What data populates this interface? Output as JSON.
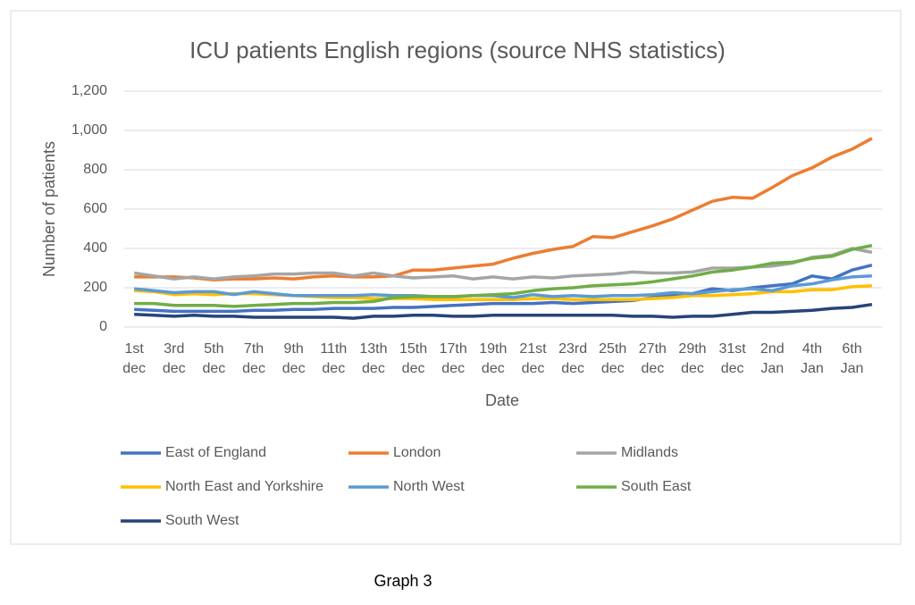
{
  "chart_data": {
    "type": "line",
    "title": "ICU patients English regions (source NHS statistics)",
    "y_label": "Number of  patients",
    "x_label": "Date",
    "caption": "Graph 3",
    "categories": [
      "1st dec",
      null,
      "3rd dec",
      null,
      "5th dec",
      null,
      "7th dec",
      null,
      "9th dec",
      null,
      "11th dec",
      null,
      "13th dec",
      null,
      "15th dec",
      null,
      "17th dec",
      null,
      "19th dec",
      null,
      "21st dec",
      null,
      "23rd dec",
      null,
      "25th dec",
      null,
      "27th dec",
      null,
      "29th dec",
      null,
      "31st dec",
      null,
      "2nd Jan",
      null,
      "4th Jan",
      null,
      "6th Jan",
      null
    ],
    "ylim": [
      0,
      1200
    ],
    "yticks": [
      0,
      200,
      400,
      600,
      800,
      {
        "value": 1000,
        "label": "1,000"
      },
      {
        "value": 1200,
        "label": "1,200"
      }
    ],
    "grid": true,
    "legend": "bottom",
    "series": [
      {
        "name": "East of England",
        "color": "#4472c4",
        "values": [
          90,
          85,
          80,
          80,
          80,
          80,
          85,
          85,
          90,
          90,
          95,
          95,
          95,
          100,
          100,
          105,
          110,
          115,
          120,
          120,
          120,
          125,
          120,
          125,
          130,
          135,
          150,
          160,
          170,
          195,
          185,
          200,
          210,
          220,
          260,
          245,
          290,
          315
        ]
      },
      {
        "name": "London",
        "color": "#ed7d31",
        "values": [
          255,
          255,
          255,
          250,
          240,
          245,
          245,
          250,
          245,
          255,
          260,
          255,
          255,
          260,
          290,
          290,
          300,
          310,
          320,
          350,
          375,
          395,
          410,
          460,
          455,
          485,
          515,
          550,
          595,
          640,
          660,
          655,
          710,
          770,
          810,
          865,
          905,
          960
        ]
      },
      {
        "name": "Midlands",
        "color": "#a5a5a5",
        "values": [
          275,
          260,
          245,
          255,
          245,
          255,
          260,
          270,
          270,
          275,
          275,
          260,
          275,
          260,
          250,
          255,
          260,
          245,
          255,
          245,
          255,
          250,
          260,
          265,
          270,
          280,
          275,
          275,
          280,
          300,
          300,
          305,
          310,
          325,
          355,
          365,
          400,
          380
        ]
      },
      {
        "name": "North East and Yorkshire",
        "color": "#ffc000",
        "values": [
          185,
          180,
          165,
          170,
          165,
          170,
          170,
          165,
          160,
          155,
          150,
          150,
          145,
          145,
          145,
          140,
          140,
          140,
          140,
          140,
          145,
          145,
          140,
          140,
          140,
          140,
          145,
          150,
          160,
          160,
          165,
          170,
          180,
          180,
          190,
          190,
          205,
          210
        ]
      },
      {
        "name": "North West",
        "color": "#5b9bd5",
        "values": [
          195,
          185,
          175,
          180,
          180,
          165,
          180,
          170,
          160,
          160,
          160,
          160,
          165,
          160,
          160,
          155,
          155,
          160,
          160,
          150,
          165,
          155,
          160,
          155,
          160,
          160,
          165,
          175,
          170,
          180,
          190,
          195,
          185,
          210,
          220,
          240,
          255,
          260
        ]
      },
      {
        "name": "South East",
        "color": "#70ad47",
        "values": [
          120,
          120,
          110,
          110,
          110,
          105,
          110,
          115,
          120,
          120,
          125,
          125,
          130,
          150,
          155,
          155,
          155,
          160,
          165,
          170,
          185,
          195,
          200,
          210,
          215,
          220,
          230,
          245,
          260,
          280,
          290,
          305,
          325,
          330,
          350,
          360,
          395,
          415
        ]
      },
      {
        "name": "South West",
        "color": "#264478",
        "values": [
          65,
          60,
          55,
          60,
          55,
          55,
          50,
          50,
          50,
          50,
          50,
          45,
          55,
          55,
          60,
          60,
          55,
          55,
          60,
          60,
          60,
          60,
          60,
          60,
          60,
          55,
          55,
          50,
          55,
          55,
          65,
          75,
          75,
          80,
          85,
          95,
          100,
          115
        ]
      }
    ]
  }
}
